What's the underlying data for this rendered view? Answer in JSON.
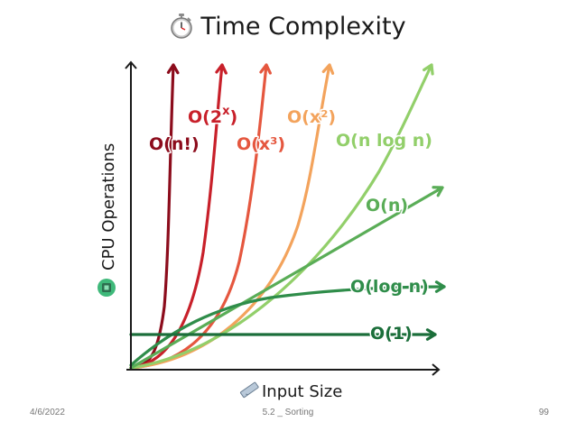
{
  "slide": {
    "title": "Time Complexity",
    "x_axis_label": "Input Size",
    "y_axis_label": "CPU Operations",
    "footer_date": "4/6/2022",
    "footer_center": "5.2 _ Sorting",
    "page_number": "99"
  },
  "icons": {
    "title": "stopwatch-icon",
    "x_axis": "ruler-icon",
    "y_axis": "cpu-chip-icon"
  },
  "curves": [
    {
      "key": "factorial",
      "label": "O(n!)",
      "color": "#8c0c1c"
    },
    {
      "key": "exp",
      "label": "O(2",
      "sup": "x",
      "color": "#c8202a"
    },
    {
      "key": "cubic",
      "label": "O(x³)",
      "color": "#e5573f"
    },
    {
      "key": "quadratic",
      "label": "O(x²)",
      "color": "#f3a35c"
    },
    {
      "key": "nlogn",
      "label": "O(n log n)",
      "color": "#92cf6a"
    },
    {
      "key": "linear",
      "label": "O(n)",
      "color": "#5aad57"
    },
    {
      "key": "log",
      "label": "O(log n)",
      "color": "#2f8d4a"
    },
    {
      "key": "const",
      "label": "O(1)",
      "color": "#1b6e3a"
    }
  ]
}
